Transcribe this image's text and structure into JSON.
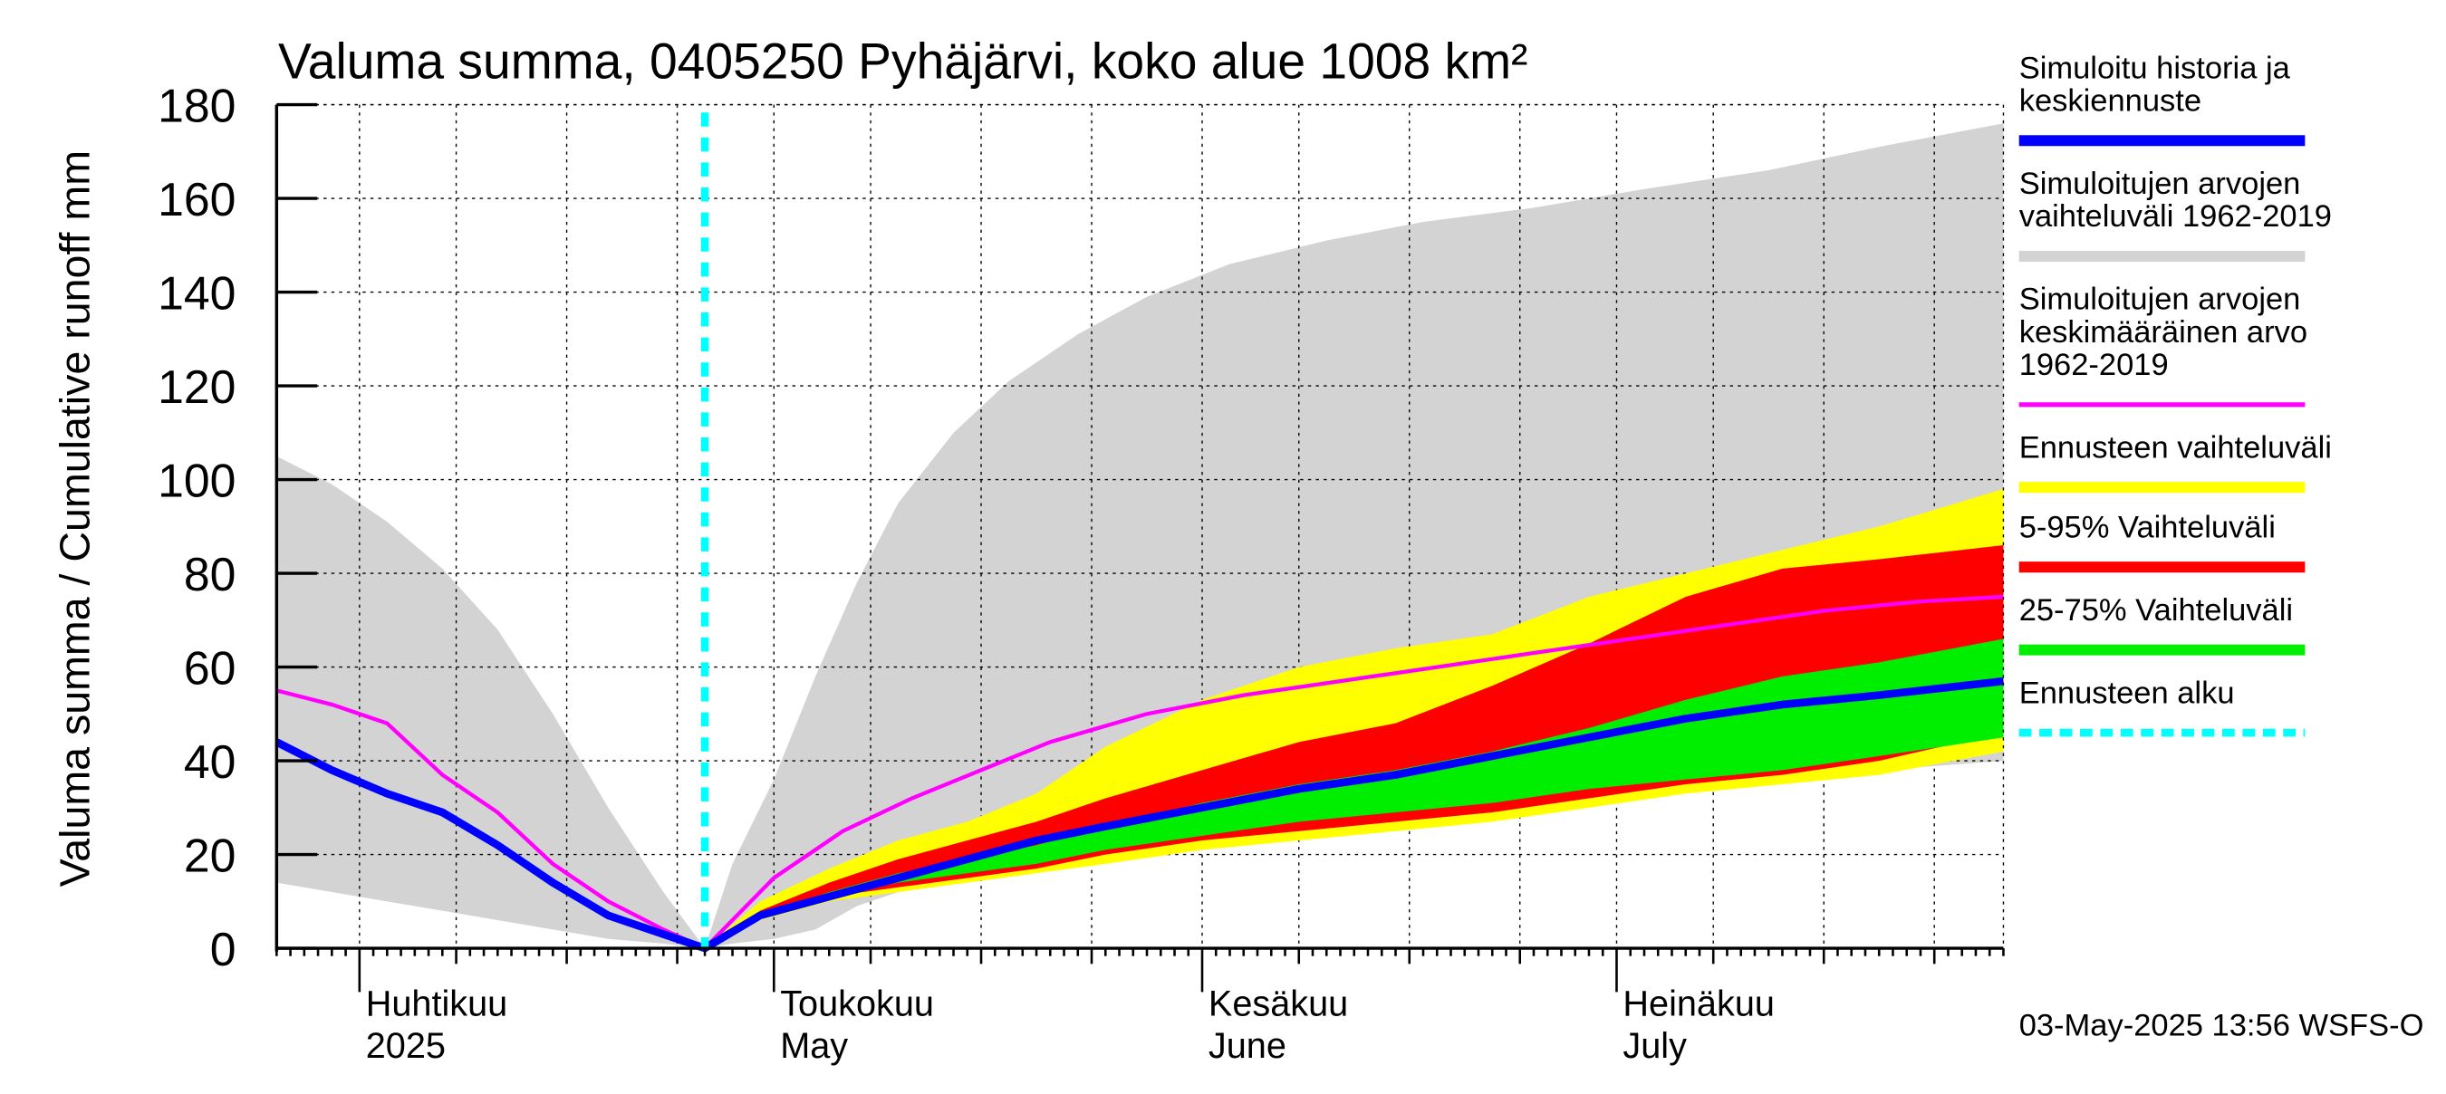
{
  "chart_data": {
    "type": "area",
    "title": "Valuma summa, 0405250 Pyhäjärvi, koko alue 1008 km²",
    "ylabel": "Valuma summa / Cumulative runoff    mm",
    "ylim": [
      0,
      180
    ],
    "yticks": [
      "0",
      "20",
      "40",
      "60",
      "80",
      "100",
      "120",
      "140",
      "160",
      "180"
    ],
    "x_start": "2025-03-26",
    "x_end": "2025-07-29",
    "forecast_start": "2025-04-26",
    "month_labels": [
      {
        "date": "2025-04-01",
        "fi": "Huhtikuu",
        "en": "2025"
      },
      {
        "date": "2025-05-01",
        "fi": "Toukokuu",
        "en": "May"
      },
      {
        "date": "2025-06-01",
        "fi": "Kesäkuu",
        "en": "June"
      },
      {
        "date": "2025-07-01",
        "fi": "Heinäkuu",
        "en": "July"
      }
    ],
    "timestamp": "03-May-2025 13:56 WSFS-O",
    "colors": {
      "history_range": "#d3d3d3",
      "forecast_range": "#ffff00",
      "p5_95": "#ff0000",
      "p25_75": "#00ee00",
      "median": "#0000ff",
      "mean": "#ff00ff",
      "forecast_start": "#00ffff"
    },
    "legend": [
      {
        "label_lines": [
          "Simuloitu historia ja",
          "keskiennuste"
        ],
        "color": "#0000ff",
        "style": "solid"
      },
      {
        "label_lines": [
          "Simuloitujen arvojen",
          "vaihteluväli 1962-2019"
        ],
        "color": "#d3d3d3",
        "style": "solid"
      },
      {
        "label_lines": [
          "Simuloitujen arvojen",
          "keskimääräinen arvo",
          "   1962-2019"
        ],
        "color": "#ff00ff",
        "style": "thin"
      },
      {
        "label_lines": [
          "Ennusteen vaihteluväli"
        ],
        "color": "#ffff00",
        "style": "solid"
      },
      {
        "label_lines": [
          "5-95% Vaihteluväli"
        ],
        "color": "#ff0000",
        "style": "solid"
      },
      {
        "label_lines": [
          "25-75% Vaihteluväli"
        ],
        "color": "#00ee00",
        "style": "solid"
      },
      {
        "label_lines": [
          "Ennusteen alku"
        ],
        "color": "#00ffff",
        "style": "dashed"
      }
    ],
    "series": {
      "history_range": {
        "x": [
          "2025-03-26",
          "2025-03-30",
          "2025-04-03",
          "2025-04-07",
          "2025-04-11",
          "2025-04-15",
          "2025-04-19",
          "2025-04-23",
          "2025-04-26",
          "2025-04-28",
          "2025-05-01",
          "2025-05-04",
          "2025-05-07",
          "2025-05-10",
          "2025-05-14",
          "2025-05-18",
          "2025-05-23",
          "2025-05-28",
          "2025-06-03",
          "2025-06-10",
          "2025-06-17",
          "2025-06-25",
          "2025-07-03",
          "2025-07-12",
          "2025-07-20",
          "2025-07-29"
        ],
        "upper": [
          105,
          99,
          91,
          81,
          68,
          50,
          30,
          12,
          0,
          18,
          36,
          58,
          78,
          95,
          110,
          121,
          131,
          139,
          146,
          151,
          155,
          158,
          162,
          166,
          171,
          176
        ],
        "lower": [
          14,
          12,
          10,
          8,
          6,
          4,
          2,
          1,
          0,
          1,
          2,
          4,
          9,
          12,
          15,
          17,
          20,
          22,
          25,
          27,
          29,
          31,
          34,
          36,
          38,
          40
        ]
      },
      "forecast_range": {
        "x": [
          "2025-04-26",
          "2025-04-30",
          "2025-05-05",
          "2025-05-10",
          "2025-05-15",
          "2025-05-20",
          "2025-05-25",
          "2025-06-01",
          "2025-06-08",
          "2025-06-15",
          "2025-06-22",
          "2025-06-29",
          "2025-07-06",
          "2025-07-13",
          "2025-07-20",
          "2025-07-29"
        ],
        "upper": [
          0,
          10,
          17,
          23,
          27,
          33,
          43,
          53,
          60,
          64,
          67,
          75,
          80,
          85,
          90,
          98
        ],
        "lower": [
          0,
          6,
          10,
          12,
          14,
          16,
          18,
          21,
          23,
          25,
          27,
          30,
          33,
          35,
          37,
          42
        ]
      },
      "p5_95": {
        "x": [
          "2025-04-26",
          "2025-04-30",
          "2025-05-05",
          "2025-05-10",
          "2025-05-15",
          "2025-05-20",
          "2025-05-25",
          "2025-06-01",
          "2025-06-08",
          "2025-06-15",
          "2025-06-22",
          "2025-06-29",
          "2025-07-06",
          "2025-07-13",
          "2025-07-20",
          "2025-07-29"
        ],
        "upper": [
          0,
          8,
          14,
          19,
          23,
          27,
          32,
          38,
          44,
          48,
          56,
          65,
          75,
          81,
          83,
          86
        ],
        "lower": [
          0,
          7,
          11,
          13,
          15,
          17,
          20,
          23,
          25,
          27,
          29,
          32,
          35,
          37,
          40,
          46
        ]
      },
      "p25_75": {
        "x": [
          "2025-04-26",
          "2025-04-30",
          "2025-05-05",
          "2025-05-10",
          "2025-05-15",
          "2025-05-20",
          "2025-05-25",
          "2025-06-01",
          "2025-06-08",
          "2025-06-15",
          "2025-06-22",
          "2025-06-29",
          "2025-07-06",
          "2025-07-13",
          "2025-07-20",
          "2025-07-29"
        ],
        "upper": [
          0,
          7,
          12,
          16,
          19,
          22,
          26,
          31,
          35,
          38,
          42,
          47,
          53,
          58,
          61,
          66
        ],
        "lower": [
          0,
          7,
          11,
          14,
          16,
          18,
          21,
          24,
          27,
          29,
          31,
          34,
          36,
          38,
          41,
          45
        ]
      },
      "median": {
        "x": [
          "2025-03-26",
          "2025-03-30",
          "2025-04-03",
          "2025-04-07",
          "2025-04-11",
          "2025-04-15",
          "2025-04-19",
          "2025-04-23",
          "2025-04-26",
          "2025-04-30",
          "2025-05-05",
          "2025-05-10",
          "2025-05-15",
          "2025-05-20",
          "2025-05-25",
          "2025-06-01",
          "2025-06-08",
          "2025-06-15",
          "2025-06-22",
          "2025-06-29",
          "2025-07-06",
          "2025-07-13",
          "2025-07-20",
          "2025-07-29"
        ],
        "y": [
          44,
          38,
          33,
          29,
          22,
          14,
          7,
          3,
          0,
          7,
          11,
          15,
          19,
          23,
          26,
          30,
          34,
          37,
          41,
          45,
          49,
          52,
          54,
          57
        ]
      },
      "mean": {
        "x": [
          "2025-03-26",
          "2025-03-30",
          "2025-04-03",
          "2025-04-07",
          "2025-04-11",
          "2025-04-15",
          "2025-04-19",
          "2025-04-23",
          "2025-04-26",
          "2025-05-01",
          "2025-05-06",
          "2025-05-11",
          "2025-05-16",
          "2025-05-21",
          "2025-05-28",
          "2025-06-04",
          "2025-06-11",
          "2025-06-18",
          "2025-06-25",
          "2025-07-02",
          "2025-07-09",
          "2025-07-16",
          "2025-07-23",
          "2025-07-29"
        ],
        "y": [
          55,
          52,
          48,
          37,
          29,
          18,
          10,
          4,
          0,
          15,
          25,
          32,
          38,
          44,
          50,
          54,
          57,
          60,
          63,
          66,
          69,
          72,
          74,
          75
        ]
      }
    }
  }
}
